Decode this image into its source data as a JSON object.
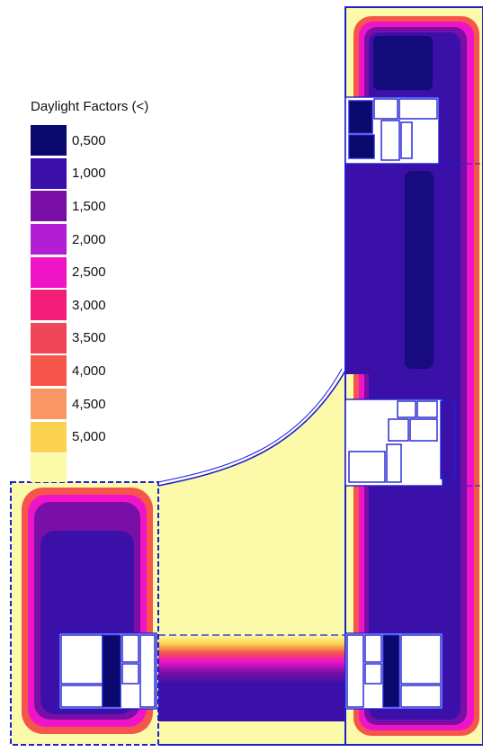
{
  "legend": {
    "title": "Daylight Factors (<)",
    "items": [
      {
        "label": "0,500",
        "color": "#0a0a6e"
      },
      {
        "label": "1,000",
        "color": "#3a10a8"
      },
      {
        "label": "1,500",
        "color": "#7a0fa8"
      },
      {
        "label": "2,000",
        "color": "#b41ed2"
      },
      {
        "label": "2,500",
        "color": "#f014c8"
      },
      {
        "label": "3,000",
        "color": "#f21e78"
      },
      {
        "label": "3,500",
        "color": "#f0465a"
      },
      {
        "label": "4,000",
        "color": "#f5554b"
      },
      {
        "label": "4,500",
        "color": "#fa9664"
      },
      {
        "label": "5,000",
        "color": "#fad250"
      }
    ],
    "above_color": "#fafaa8"
  },
  "colors": {
    "background": "#ffffff",
    "wall_line": "#1e1ed2",
    "room_fill": "#ffffff"
  }
}
